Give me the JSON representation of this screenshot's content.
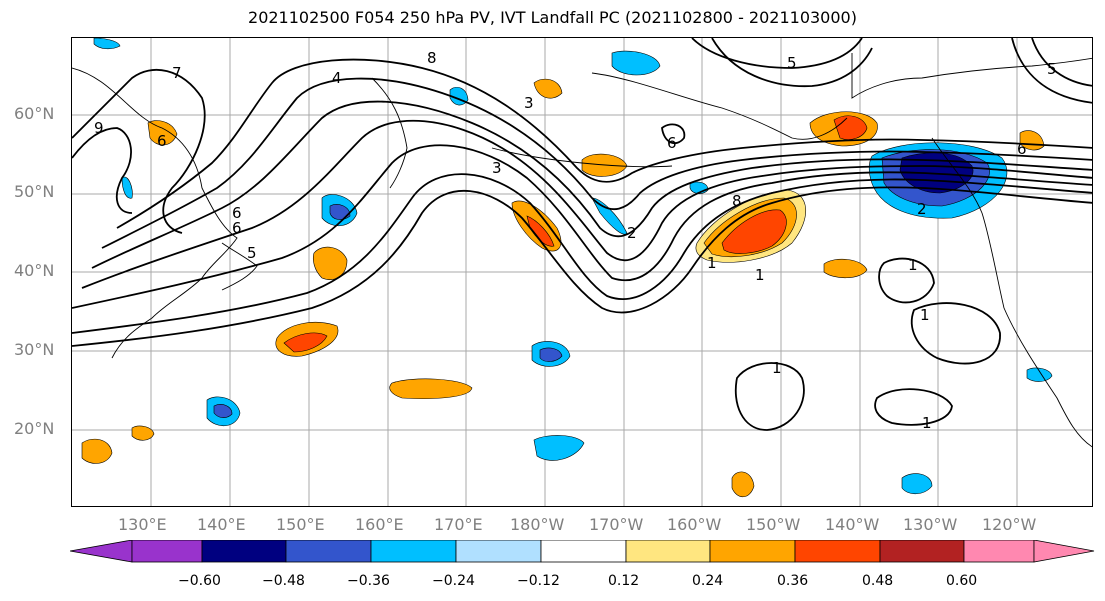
{
  "title": "2021102500 F054 250 hPa PV, IVT Landfall PC (2021102800 - 2021103000)",
  "lat_labels": [
    "60°N",
    "50°N",
    "40°N",
    "30°N",
    "20°N"
  ],
  "lon_labels": [
    "130°E",
    "140°E",
    "150°E",
    "160°E",
    "170°E",
    "180°W",
    "170°W",
    "160°W",
    "150°W",
    "140°W",
    "130°W",
    "120°W"
  ],
  "contour_labels": [
    "7",
    "6",
    "5",
    "4",
    "3",
    "2",
    "1",
    "8",
    "6",
    "5",
    "6",
    "8",
    "9",
    "6",
    "5",
    "1",
    "1",
    "1",
    "1",
    "1",
    "2",
    "3",
    "6"
  ],
  "colorbar": {
    "colors": [
      "#9933cc",
      "#000080",
      "#3355cc",
      "#00bfff",
      "#b0e0ff",
      "#ffffff",
      "#ffe680",
      "#ffa500",
      "#ff4500",
      "#b22222",
      "#ff88b0"
    ],
    "tick_labels": [
      "−0.60",
      "−0.48",
      "−0.36",
      "−0.24",
      "−0.12",
      "0.12",
      "0.24",
      "0.36",
      "0.48",
      "0.60"
    ],
    "levels": [
      -0.6,
      -0.48,
      -0.36,
      -0.24,
      -0.12,
      0.12,
      0.24,
      0.36,
      0.48,
      0.6
    ]
  },
  "grid": true
}
